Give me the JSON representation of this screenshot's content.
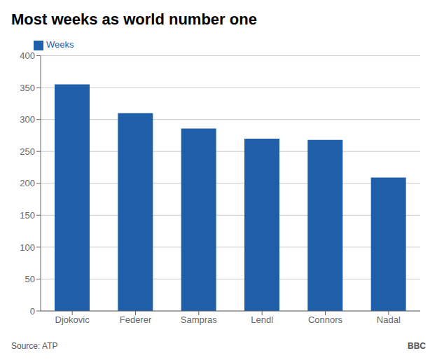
{
  "chart_data": {
    "type": "bar",
    "title": "Most weeks as world number one",
    "categories": [
      "Djokovic",
      "Federer",
      "Sampras",
      "Lendl",
      "Connors",
      "Nadal"
    ],
    "series": [
      {
        "name": "Weeks",
        "color": "#1f5ea8",
        "values": [
          355,
          310,
          286,
          270,
          268,
          209
        ]
      }
    ],
    "ylim": [
      0,
      400
    ],
    "yticks": [
      0,
      50,
      100,
      150,
      200,
      250,
      300,
      350,
      400
    ],
    "grid": true,
    "legend": "upper left",
    "annotations": [
      "Source: ATP",
      "BBC"
    ]
  }
}
